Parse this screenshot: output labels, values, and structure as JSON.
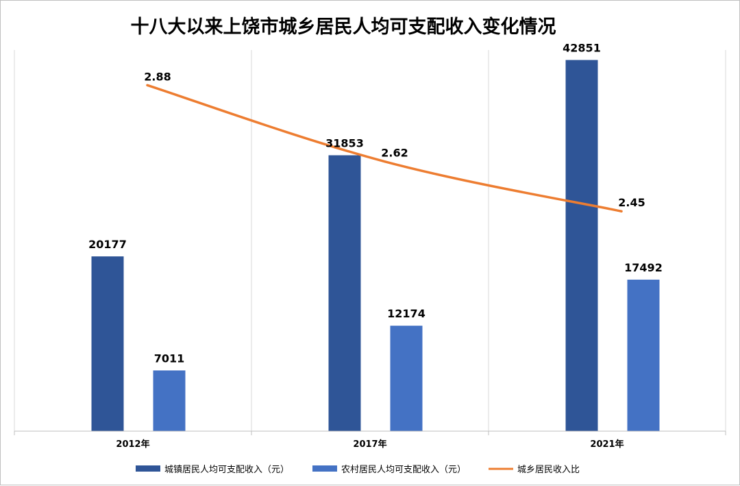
{
  "chart_data": {
    "type": "bar",
    "title": "十八大以来上饶市城乡居民人均可支配收入变化情况",
    "categories": [
      "2012年",
      "2017年",
      "2021年"
    ],
    "ylim": [
      0,
      44000
    ],
    "series": [
      {
        "name": "城镇居民人均可支配收入（元）",
        "kind": "bar",
        "color": "#2f5597",
        "values": [
          20177,
          31853,
          42851
        ]
      },
      {
        "name": "农村居民人均可支配收入（元）",
        "kind": "bar",
        "color": "#4472c4",
        "values": [
          7011,
          12174,
          17492
        ]
      },
      {
        "name": "城乡居民收入比",
        "kind": "line",
        "color": "#ed7d31",
        "values": [
          2.88,
          2.62,
          2.45
        ],
        "ylim": [
          1.7,
          3.0
        ]
      }
    ],
    "data_labels": {
      "bar_urban": [
        "20177",
        "31853",
        "42851"
      ],
      "bar_rural": [
        "7011",
        "12174",
        "17492"
      ],
      "line_ratio": [
        "2.88",
        "2.62",
        "2.45"
      ]
    },
    "gridlines": "vertical-between-categories",
    "legend": "bottom"
  }
}
